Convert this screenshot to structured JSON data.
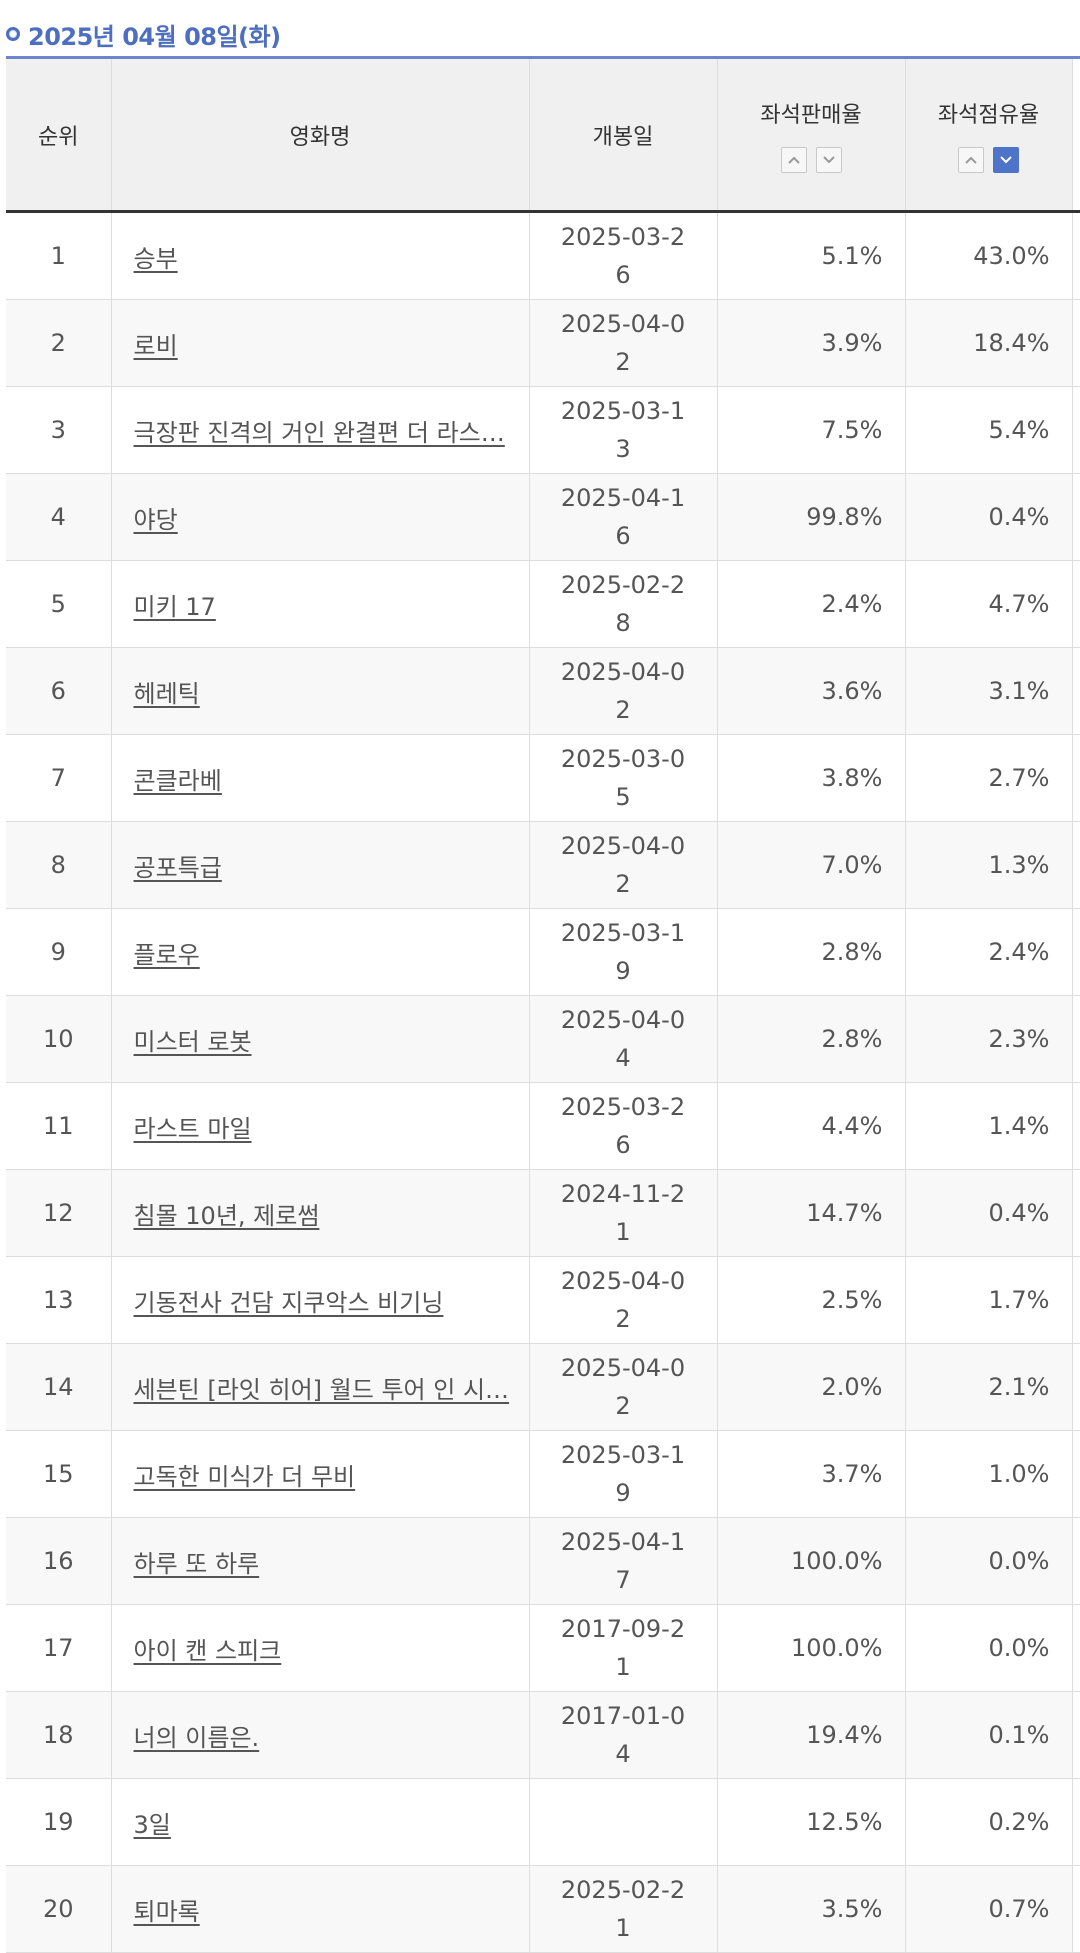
{
  "header": {
    "date_label": "2025년 04월 08일(화)"
  },
  "columns": {
    "rank": "순위",
    "title": "영화명",
    "release_date": "개봉일",
    "seat_sales_rate": "좌석판매율",
    "seat_share": "좌석점유율"
  },
  "sort": {
    "up_icon": "chevron-up-icon",
    "down_icon": "chevron-down-icon",
    "active_column": "seat_share",
    "active_direction": "down"
  },
  "rows": [
    {
      "rank": "1",
      "title": "승부",
      "release_date": "2025-03-26",
      "seat_sales_rate": "5.1%",
      "seat_share": "43.0%"
    },
    {
      "rank": "2",
      "title": "로비",
      "release_date": "2025-04-02",
      "seat_sales_rate": "3.9%",
      "seat_share": "18.4%"
    },
    {
      "rank": "3",
      "title": "극장판 진격의 거인 완결편 더 라스…",
      "release_date": "2025-03-13",
      "seat_sales_rate": "7.5%",
      "seat_share": "5.4%"
    },
    {
      "rank": "4",
      "title": "야당",
      "release_date": "2025-04-16",
      "seat_sales_rate": "99.8%",
      "seat_share": "0.4%"
    },
    {
      "rank": "5",
      "title": "미키 17",
      "release_date": "2025-02-28",
      "seat_sales_rate": "2.4%",
      "seat_share": "4.7%"
    },
    {
      "rank": "6",
      "title": "헤레틱",
      "release_date": "2025-04-02",
      "seat_sales_rate": "3.6%",
      "seat_share": "3.1%"
    },
    {
      "rank": "7",
      "title": "콘클라베",
      "release_date": "2025-03-05",
      "seat_sales_rate": "3.8%",
      "seat_share": "2.7%"
    },
    {
      "rank": "8",
      "title": "공포특급",
      "release_date": "2025-04-02",
      "seat_sales_rate": "7.0%",
      "seat_share": "1.3%"
    },
    {
      "rank": "9",
      "title": "플로우",
      "release_date": "2025-03-19",
      "seat_sales_rate": "2.8%",
      "seat_share": "2.4%"
    },
    {
      "rank": "10",
      "title": "미스터 로봇",
      "release_date": "2025-04-04",
      "seat_sales_rate": "2.8%",
      "seat_share": "2.3%"
    },
    {
      "rank": "11",
      "title": "라스트 마일",
      "release_date": "2025-03-26",
      "seat_sales_rate": "4.4%",
      "seat_share": "1.4%"
    },
    {
      "rank": "12",
      "title": "침몰 10년, 제로썸",
      "release_date": "2024-11-21",
      "seat_sales_rate": "14.7%",
      "seat_share": "0.4%"
    },
    {
      "rank": "13",
      "title": "기동전사 건담 지쿠악스 비기닝",
      "release_date": "2025-04-02",
      "seat_sales_rate": "2.5%",
      "seat_share": "1.7%"
    },
    {
      "rank": "14",
      "title": "세븐틴 [라잇 히어] 월드 투어 인 시…",
      "release_date": "2025-04-02",
      "seat_sales_rate": "2.0%",
      "seat_share": "2.1%"
    },
    {
      "rank": "15",
      "title": "고독한 미식가 더 무비",
      "release_date": "2025-03-19",
      "seat_sales_rate": "3.7%",
      "seat_share": "1.0%"
    },
    {
      "rank": "16",
      "title": "하루 또 하루",
      "release_date": "2025-04-17",
      "seat_sales_rate": "100.0%",
      "seat_share": "0.0%"
    },
    {
      "rank": "17",
      "title": "아이 캔 스피크",
      "release_date": "2017-09-21",
      "seat_sales_rate": "100.0%",
      "seat_share": "0.0%"
    },
    {
      "rank": "18",
      "title": "너의 이름은.",
      "release_date": "2017-01-04",
      "seat_sales_rate": "19.4%",
      "seat_share": "0.1%"
    },
    {
      "rank": "19",
      "title": "3일",
      "release_date": "",
      "seat_sales_rate": "12.5%",
      "seat_share": "0.2%"
    },
    {
      "rank": "20",
      "title": "퇴마록",
      "release_date": "2025-02-21",
      "seat_sales_rate": "3.5%",
      "seat_share": "0.7%"
    }
  ]
}
